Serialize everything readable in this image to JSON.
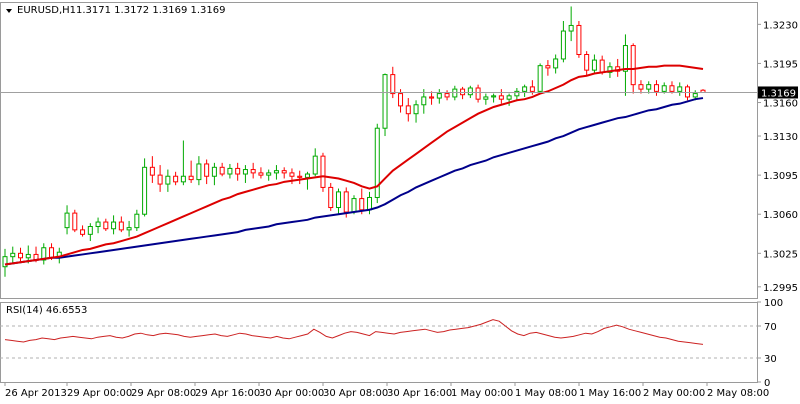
{
  "chart_data": [
    {
      "type": "candlestick",
      "symbol_label": "EURUSD,H1",
      "ohlc_label": "1.3171 1.3172 1.3169 1.3169",
      "y_range": [
        1.2985,
        1.325
      ],
      "y_ticks": [
        "1.3230",
        "1.3195",
        "1.3160",
        "1.3130",
        "1.3095",
        "1.3060",
        "1.3025",
        "1.2995"
      ],
      "current_price": "1.3169",
      "x_ticks": [
        "26 Apr 2013",
        "29 Apr 00:00",
        "29 Apr 08:00",
        "29 Apr 16:00",
        "30 Apr 00:00",
        "30 Apr 08:00",
        "30 Apr 16:00",
        "1 May 00:00",
        "1 May 08:00",
        "1 May 16:00",
        "2 May 00:00",
        "2 May 08:00"
      ],
      "candles": [
        [
          1.3013,
          1.3029,
          1.3004,
          1.3022
        ],
        [
          1.3022,
          1.3031,
          1.3016,
          1.3025
        ],
        [
          1.3025,
          1.303,
          1.3018,
          1.3021
        ],
        [
          1.3021,
          1.3032,
          1.3016,
          1.3024
        ],
        [
          1.3024,
          1.3031,
          1.3017,
          1.3019
        ],
        [
          1.3019,
          1.3034,
          1.3015,
          1.303
        ],
        [
          1.303,
          1.3034,
          1.3019,
          1.3021
        ],
        [
          1.3021,
          1.303,
          1.3016,
          1.3026
        ],
        [
          1.3048,
          1.3068,
          1.3042,
          1.3061
        ],
        [
          1.3061,
          1.3064,
          1.3044,
          1.3046
        ],
        [
          1.3046,
          1.305,
          1.304,
          1.3042
        ],
        [
          1.3042,
          1.3052,
          1.3036,
          1.3049
        ],
        [
          1.3049,
          1.3057,
          1.3043,
          1.3053
        ],
        [
          1.3053,
          1.3056,
          1.3045,
          1.3047
        ],
        [
          1.3047,
          1.3059,
          1.3042,
          1.3053
        ],
        [
          1.3053,
          1.3058,
          1.3044,
          1.3046
        ],
        [
          1.3046,
          1.3054,
          1.304,
          1.3048
        ],
        [
          1.3048,
          1.3064,
          1.3045,
          1.306
        ],
        [
          1.306,
          1.311,
          1.3058,
          1.3102
        ],
        [
          1.3102,
          1.3112,
          1.3088,
          1.3095
        ],
        [
          1.3095,
          1.3104,
          1.308,
          1.3087
        ],
        [
          1.3087,
          1.31,
          1.308,
          1.3094
        ],
        [
          1.3094,
          1.3098,
          1.3086,
          1.3089
        ],
        [
          1.3089,
          1.3126,
          1.3086,
          1.3094
        ],
        [
          1.3094,
          1.3108,
          1.3088,
          1.3091
        ],
        [
          1.3091,
          1.3112,
          1.3086,
          1.3105
        ],
        [
          1.3105,
          1.3109,
          1.3087,
          1.3094
        ],
        [
          1.3094,
          1.3106,
          1.3086,
          1.3102
        ],
        [
          1.3102,
          1.3106,
          1.3094,
          1.3096
        ],
        [
          1.3096,
          1.3105,
          1.3092,
          1.3101
        ],
        [
          1.3101,
          1.3106,
          1.309,
          1.3096
        ],
        [
          1.3096,
          1.3104,
          1.3088,
          1.31
        ],
        [
          1.31,
          1.3106,
          1.3092,
          1.3097
        ],
        [
          1.3097,
          1.3102,
          1.3092,
          1.3095
        ],
        [
          1.3095,
          1.31,
          1.309,
          1.3097
        ],
        [
          1.3097,
          1.3104,
          1.3091,
          1.3099
        ],
        [
          1.3099,
          1.3102,
          1.3092,
          1.3097
        ],
        [
          1.3097,
          1.3101,
          1.3087,
          1.3094
        ],
        [
          1.3094,
          1.3099,
          1.3087,
          1.3093
        ],
        [
          1.3093,
          1.3098,
          1.3082,
          1.3096
        ],
        [
          1.3096,
          1.3119,
          1.3094,
          1.3112
        ],
        [
          1.3112,
          1.3115,
          1.308,
          1.3084
        ],
        [
          1.3084,
          1.3088,
          1.3063,
          1.3066
        ],
        [
          1.3066,
          1.3083,
          1.306,
          1.308
        ],
        [
          1.308,
          1.3084,
          1.3057,
          1.3062
        ],
        [
          1.3062,
          1.3077,
          1.306,
          1.3074
        ],
        [
          1.3074,
          1.3083,
          1.306,
          1.3064
        ],
        [
          1.3064,
          1.308,
          1.306,
          1.3075
        ],
        [
          1.3075,
          1.3141,
          1.307,
          1.3137
        ],
        [
          1.3137,
          1.3186,
          1.313,
          1.3185
        ],
        [
          1.3185,
          1.3192,
          1.3164,
          1.3168
        ],
        [
          1.3168,
          1.3172,
          1.3151,
          1.3157
        ],
        [
          1.3157,
          1.3164,
          1.3143,
          1.315
        ],
        [
          1.315,
          1.3162,
          1.3142,
          1.3158
        ],
        [
          1.3158,
          1.3172,
          1.315,
          1.3165
        ],
        [
          1.3165,
          1.317,
          1.3158,
          1.3164
        ],
        [
          1.3164,
          1.3172,
          1.3159,
          1.3168
        ],
        [
          1.3168,
          1.3171,
          1.3162,
          1.3165
        ],
        [
          1.3165,
          1.3175,
          1.3162,
          1.3172
        ],
        [
          1.3172,
          1.3174,
          1.3163,
          1.3167
        ],
        [
          1.3167,
          1.3175,
          1.3164,
          1.3173
        ],
        [
          1.3173,
          1.3176,
          1.316,
          1.3163
        ],
        [
          1.3163,
          1.3168,
          1.3158,
          1.3165
        ],
        [
          1.3165,
          1.3168,
          1.316,
          1.3166
        ],
        [
          1.3166,
          1.3172,
          1.3159,
          1.3163
        ],
        [
          1.3163,
          1.3168,
          1.3157,
          1.3166
        ],
        [
          1.3166,
          1.3173,
          1.3162,
          1.317
        ],
        [
          1.317,
          1.3176,
          1.3165,
          1.3174
        ],
        [
          1.3174,
          1.318,
          1.3167,
          1.317
        ],
        [
          1.317,
          1.3195,
          1.3168,
          1.3193
        ],
        [
          1.3193,
          1.3198,
          1.3184,
          1.3191
        ],
        [
          1.3191,
          1.3203,
          1.3186,
          1.3199
        ],
        [
          1.3199,
          1.3233,
          1.3196,
          1.3224
        ],
        [
          1.3224,
          1.3246,
          1.3215,
          1.3229
        ],
        [
          1.3229,
          1.3233,
          1.32,
          1.3203
        ],
        [
          1.3203,
          1.3206,
          1.3184,
          1.3189
        ],
        [
          1.3189,
          1.3203,
          1.3186,
          1.3198
        ],
        [
          1.3198,
          1.3202,
          1.3185,
          1.3187
        ],
        [
          1.3187,
          1.3196,
          1.3182,
          1.3192
        ],
        [
          1.3192,
          1.3199,
          1.3183,
          1.3188
        ],
        [
          1.3188,
          1.3221,
          1.3166,
          1.3211
        ],
        [
          1.3211,
          1.3213,
          1.3168,
          1.3176
        ],
        [
          1.3176,
          1.318,
          1.3168,
          1.3172
        ],
        [
          1.3172,
          1.3179,
          1.3168,
          1.3176
        ],
        [
          1.3176,
          1.318,
          1.3166,
          1.317
        ],
        [
          1.317,
          1.3178,
          1.3168,
          1.3175
        ],
        [
          1.3175,
          1.3179,
          1.3168,
          1.317
        ],
        [
          1.317,
          1.3178,
          1.3166,
          1.3174
        ],
        [
          1.3174,
          1.3176,
          1.3162,
          1.3165
        ],
        [
          1.3165,
          1.3171,
          1.3162,
          1.3168
        ],
        [
          1.3171,
          1.3172,
          1.3169,
          1.3169
        ]
      ],
      "ma_fast": [
        1.3015,
        1.3016,
        1.3017,
        1.3018,
        1.3019,
        1.302,
        1.3021,
        1.3022,
        1.3024,
        1.3026,
        1.3028,
        1.3029,
        1.3031,
        1.3033,
        1.3034,
        1.3036,
        1.3038,
        1.304,
        1.3043,
        1.3046,
        1.3049,
        1.3052,
        1.3055,
        1.3058,
        1.3061,
        1.3064,
        1.3067,
        1.307,
        1.3073,
        1.3075,
        1.3078,
        1.308,
        1.3082,
        1.3084,
        1.3086,
        1.3087,
        1.3089,
        1.309,
        1.3091,
        1.3092,
        1.3093,
        1.3094,
        1.3093,
        1.3092,
        1.309,
        1.3088,
        1.3085,
        1.3083,
        1.3085,
        1.3092,
        1.3099,
        1.3104,
        1.3109,
        1.3114,
        1.3119,
        1.3124,
        1.3129,
        1.3134,
        1.3138,
        1.3142,
        1.3146,
        1.315,
        1.3153,
        1.3156,
        1.3158,
        1.316,
        1.3162,
        1.3163,
        1.3165,
        1.3168,
        1.317,
        1.3173,
        1.3176,
        1.318,
        1.3183,
        1.3184,
        1.3186,
        1.3187,
        1.3188,
        1.3189,
        1.319,
        1.319,
        1.3191,
        1.3192,
        1.3192,
        1.3193,
        1.3193,
        1.3193,
        1.3192,
        1.3191,
        1.319
      ],
      "ma_slow": [
        1.3015,
        1.3016,
        1.3017,
        1.3018,
        1.3019,
        1.302,
        1.3021,
        1.3021,
        1.3022,
        1.3023,
        1.3024,
        1.3025,
        1.3026,
        1.3027,
        1.3028,
        1.3029,
        1.303,
        1.3031,
        1.3032,
        1.3033,
        1.3034,
        1.3035,
        1.3036,
        1.3037,
        1.3038,
        1.3039,
        1.304,
        1.3041,
        1.3042,
        1.3043,
        1.3044,
        1.3046,
        1.3047,
        1.3048,
        1.3049,
        1.3051,
        1.3052,
        1.3053,
        1.3054,
        1.3055,
        1.3057,
        1.3058,
        1.3059,
        1.306,
        1.3061,
        1.3062,
        1.3063,
        1.3064,
        1.3066,
        1.3069,
        1.3073,
        1.3077,
        1.308,
        1.3084,
        1.3087,
        1.309,
        1.3093,
        1.3096,
        1.3099,
        1.3101,
        1.3104,
        1.3106,
        1.3108,
        1.3111,
        1.3113,
        1.3115,
        1.3117,
        1.3119,
        1.3121,
        1.3123,
        1.3125,
        1.3128,
        1.313,
        1.3133,
        1.3136,
        1.3138,
        1.314,
        1.3142,
        1.3144,
        1.3146,
        1.3147,
        1.3149,
        1.3151,
        1.3153,
        1.3154,
        1.3156,
        1.3158,
        1.3159,
        1.3161,
        1.3163,
        1.3164
      ],
      "colors": {
        "up": "#00aa00",
        "down": "#ff0000",
        "ma_fast": "#dd0000",
        "ma_slow": "#00008b",
        "grid": "#e4e4e4",
        "axis": "#9a9a9a",
        "text": "#000000"
      }
    },
    {
      "type": "line",
      "label": "RSI(14) 46.6553",
      "y_range": [
        0,
        100
      ],
      "y_ticks": [
        "100",
        "70",
        "30",
        "0"
      ],
      "levels": [
        70,
        30
      ],
      "series": [
        {
          "values": [
            53,
            52,
            51,
            50,
            52,
            53,
            55,
            54,
            53,
            55,
            56,
            57,
            56,
            55,
            54,
            56,
            57,
            58,
            56,
            55,
            57,
            60,
            61,
            59,
            58,
            60,
            61,
            60,
            59,
            57,
            56,
            57,
            58,
            59,
            60,
            58,
            57,
            59,
            61,
            60,
            58,
            57,
            56,
            55,
            57,
            55,
            54,
            56,
            58,
            60,
            66,
            62,
            57,
            55,
            58,
            61,
            63,
            62,
            60,
            58,
            63,
            62,
            61,
            60,
            62,
            63,
            64,
            65,
            66,
            64,
            62,
            63,
            65,
            66,
            67,
            68,
            70,
            72,
            75,
            78,
            76,
            70,
            64,
            60,
            58,
            61,
            62,
            60,
            58,
            56,
            55,
            56,
            57,
            59,
            61,
            60,
            63,
            67,
            69,
            71,
            69,
            66,
            64,
            62,
            60,
            58,
            56,
            55,
            53,
            51,
            50,
            49,
            48,
            47
          ]
        }
      ]
    }
  ]
}
